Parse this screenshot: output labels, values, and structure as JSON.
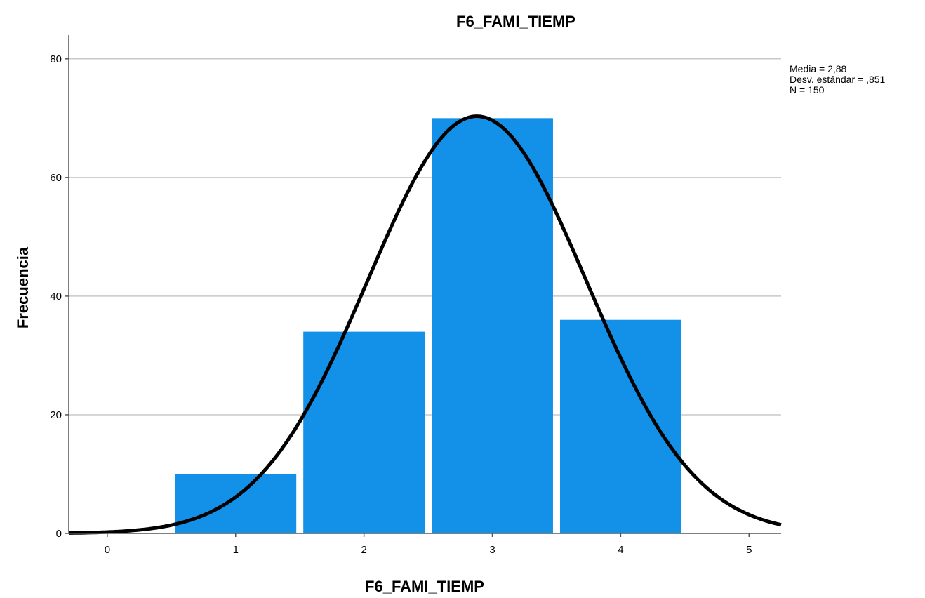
{
  "chart_data": {
    "type": "bar",
    "title": "F6_FAMI_TIEMP",
    "xlabel": "F6_FAMI_TIEMP",
    "ylabel": "Frecuencia",
    "categories": [
      1,
      2,
      3,
      4
    ],
    "values": [
      10,
      34,
      70,
      36
    ],
    "xticks": [
      "0",
      "1",
      "2",
      "3",
      "4",
      "5"
    ],
    "yticks": [
      "0",
      "20",
      "40",
      "60",
      "80"
    ],
    "xlim": [
      -0.3,
      5.25
    ],
    "ylim": [
      0,
      84
    ],
    "grid": true,
    "bar_color": "#1390E8",
    "curve_color": "#000000",
    "normal_curve": {
      "mean": 2.88,
      "sd": 0.851,
      "n": 150
    },
    "stats": {
      "mean": "Media = 2,88",
      "sd": "Desv. estándar = ,851",
      "n": "N = 150"
    }
  }
}
